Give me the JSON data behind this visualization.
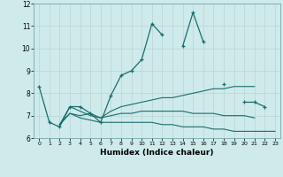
{
  "title": "",
  "xlabel": "Humidex (Indice chaleur)",
  "ylabel": "",
  "background_color": "#ceeaea",
  "grid_color": "#b8d4d4",
  "line_color": "#1a6e6e",
  "xlim": [
    -0.5,
    23.5
  ],
  "ylim": [
    6,
    12
  ],
  "yticks": [
    6,
    7,
    8,
    9,
    10,
    11,
    12
  ],
  "xticks": [
    0,
    1,
    2,
    3,
    4,
    5,
    6,
    7,
    8,
    9,
    10,
    11,
    12,
    13,
    14,
    15,
    16,
    17,
    18,
    19,
    20,
    21,
    22,
    23
  ],
  "series": [
    {
      "x": [
        0,
        1,
        2,
        3,
        4,
        5,
        6,
        7,
        8,
        9,
        10,
        11,
        12,
        14,
        15,
        16,
        18,
        20,
        21,
        22
      ],
      "y": [
        8.3,
        6.7,
        6.5,
        7.4,
        7.4,
        7.1,
        6.7,
        7.9,
        8.8,
        9.0,
        9.5,
        11.1,
        10.6,
        10.1,
        11.6,
        10.3,
        8.4,
        7.6,
        7.6,
        7.4
      ],
      "segments": [
        {
          "x": [
            0,
            1,
            2,
            3,
            4,
            5,
            6,
            7,
            8,
            9,
            10,
            11,
            12
          ],
          "y": [
            8.3,
            6.7,
            6.5,
            7.4,
            7.4,
            7.1,
            6.7,
            7.9,
            8.8,
            9.0,
            9.5,
            11.1,
            10.6
          ]
        },
        {
          "x": [
            14,
            15,
            16
          ],
          "y": [
            10.1,
            11.6,
            10.3
          ]
        },
        {
          "x": [
            18
          ],
          "y": [
            8.4
          ]
        },
        {
          "x": [
            20,
            21,
            22
          ],
          "y": [
            7.6,
            7.6,
            7.4
          ]
        }
      ]
    },
    {
      "segments": [
        {
          "x": [
            2,
            3,
            4,
            5,
            6,
            7,
            8,
            9,
            10,
            11,
            12,
            13,
            14,
            15,
            16,
            17,
            18,
            19,
            20,
            21
          ],
          "y": [
            6.6,
            7.1,
            7.0,
            7.1,
            6.9,
            7.2,
            7.4,
            7.5,
            7.6,
            7.7,
            7.8,
            7.8,
            7.9,
            8.0,
            8.1,
            8.2,
            8.2,
            8.3,
            8.3,
            8.3
          ]
        }
      ]
    },
    {
      "segments": [
        {
          "x": [
            2,
            3,
            4,
            5,
            6,
            7,
            8,
            9,
            10,
            11,
            12,
            13,
            14,
            15,
            16,
            17,
            18,
            19,
            20,
            21
          ],
          "y": [
            6.6,
            7.4,
            7.2,
            7.0,
            6.9,
            7.0,
            7.1,
            7.1,
            7.2,
            7.2,
            7.2,
            7.2,
            7.2,
            7.1,
            7.1,
            7.1,
            7.0,
            7.0,
            7.0,
            6.9
          ]
        }
      ]
    },
    {
      "segments": [
        {
          "x": [
            2,
            3,
            4,
            5,
            6,
            7,
            8,
            9,
            10,
            11,
            12,
            13,
            14,
            15,
            16,
            17,
            18,
            19,
            20,
            21,
            22,
            23
          ],
          "y": [
            6.6,
            7.1,
            6.9,
            6.8,
            6.7,
            6.7,
            6.7,
            6.7,
            6.7,
            6.7,
            6.6,
            6.6,
            6.5,
            6.5,
            6.5,
            6.4,
            6.4,
            6.3,
            6.3,
            6.3,
            6.3,
            6.3
          ]
        }
      ]
    }
  ]
}
